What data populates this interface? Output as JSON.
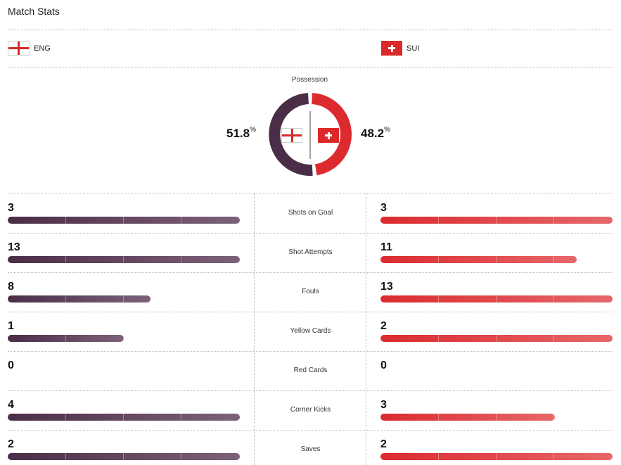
{
  "title": "Match Stats",
  "teams": {
    "home": {
      "code": "ENG",
      "flag": "england-flag-icon",
      "color": "#4a2d47"
    },
    "away": {
      "code": "SUI",
      "flag": "switzerland-flag-icon",
      "color": "#db2b2f"
    }
  },
  "possession": {
    "label": "Possession",
    "home_value": "51.8",
    "away_value": "48.2",
    "unit": "%",
    "home_fraction": 0.518,
    "away_fraction": 0.482
  },
  "stats": [
    {
      "label": "Shots on Goal",
      "home": "3",
      "away": "3",
      "home_fraction": 1.0,
      "away_fraction": 1.0
    },
    {
      "label": "Shot Attempts",
      "home": "13",
      "away": "11",
      "home_fraction": 1.0,
      "away_fraction": 0.846
    },
    {
      "label": "Fouls",
      "home": "8",
      "away": "13",
      "home_fraction": 0.615,
      "away_fraction": 1.0
    },
    {
      "label": "Yellow Cards",
      "home": "1",
      "away": "2",
      "home_fraction": 0.5,
      "away_fraction": 1.0
    },
    {
      "label": "Red Cards",
      "home": "0",
      "away": "0",
      "home_fraction": 0,
      "away_fraction": 0
    },
    {
      "label": "Corner Kicks",
      "home": "4",
      "away": "3",
      "home_fraction": 1.0,
      "away_fraction": 0.75
    },
    {
      "label": "Saves",
      "home": "2",
      "away": "2",
      "home_fraction": 1.0,
      "away_fraction": 1.0
    }
  ]
}
